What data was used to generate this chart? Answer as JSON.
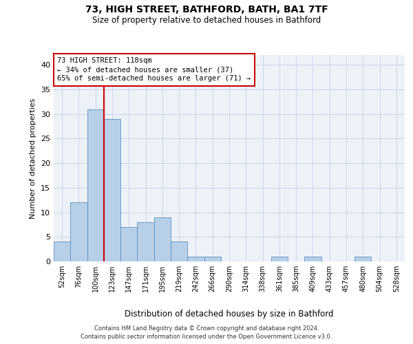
{
  "title_line1": "73, HIGH STREET, BATHFORD, BATH, BA1 7TF",
  "title_line2": "Size of property relative to detached houses in Bathford",
  "xlabel": "Distribution of detached houses by size in Bathford",
  "ylabel": "Number of detached properties",
  "footer_line1": "Contains HM Land Registry data © Crown copyright and database right 2024.",
  "footer_line2": "Contains public sector information licensed under the Open Government Licence v3.0.",
  "bin_labels": [
    "52sqm",
    "76sqm",
    "100sqm",
    "123sqm",
    "147sqm",
    "171sqm",
    "195sqm",
    "219sqm",
    "242sqm",
    "266sqm",
    "290sqm",
    "314sqm",
    "338sqm",
    "361sqm",
    "385sqm",
    "409sqm",
    "433sqm",
    "457sqm",
    "480sqm",
    "504sqm",
    "528sqm"
  ],
  "bar_values": [
    4,
    12,
    31,
    29,
    7,
    8,
    9,
    4,
    1,
    1,
    0,
    0,
    0,
    1,
    0,
    1,
    0,
    0,
    1,
    0,
    0
  ],
  "bar_color": "#b8cfe8",
  "bar_edge_color": "#5a8fc0",
  "grid_color": "#d0d8e8",
  "background_color": "#edf2f9",
  "vline_color": "#cc0000",
  "vline_x": 2.5,
  "annotation_text": "73 HIGH STREET: 118sqm\n← 34% of detached houses are smaller (37)\n65% of semi-detached houses are larger (71) →",
  "annotation_box_color": "#cc0000",
  "ylim": [
    0,
    42
  ],
  "yticks": [
    0,
    5,
    10,
    15,
    20,
    25,
    30,
    35,
    40
  ]
}
